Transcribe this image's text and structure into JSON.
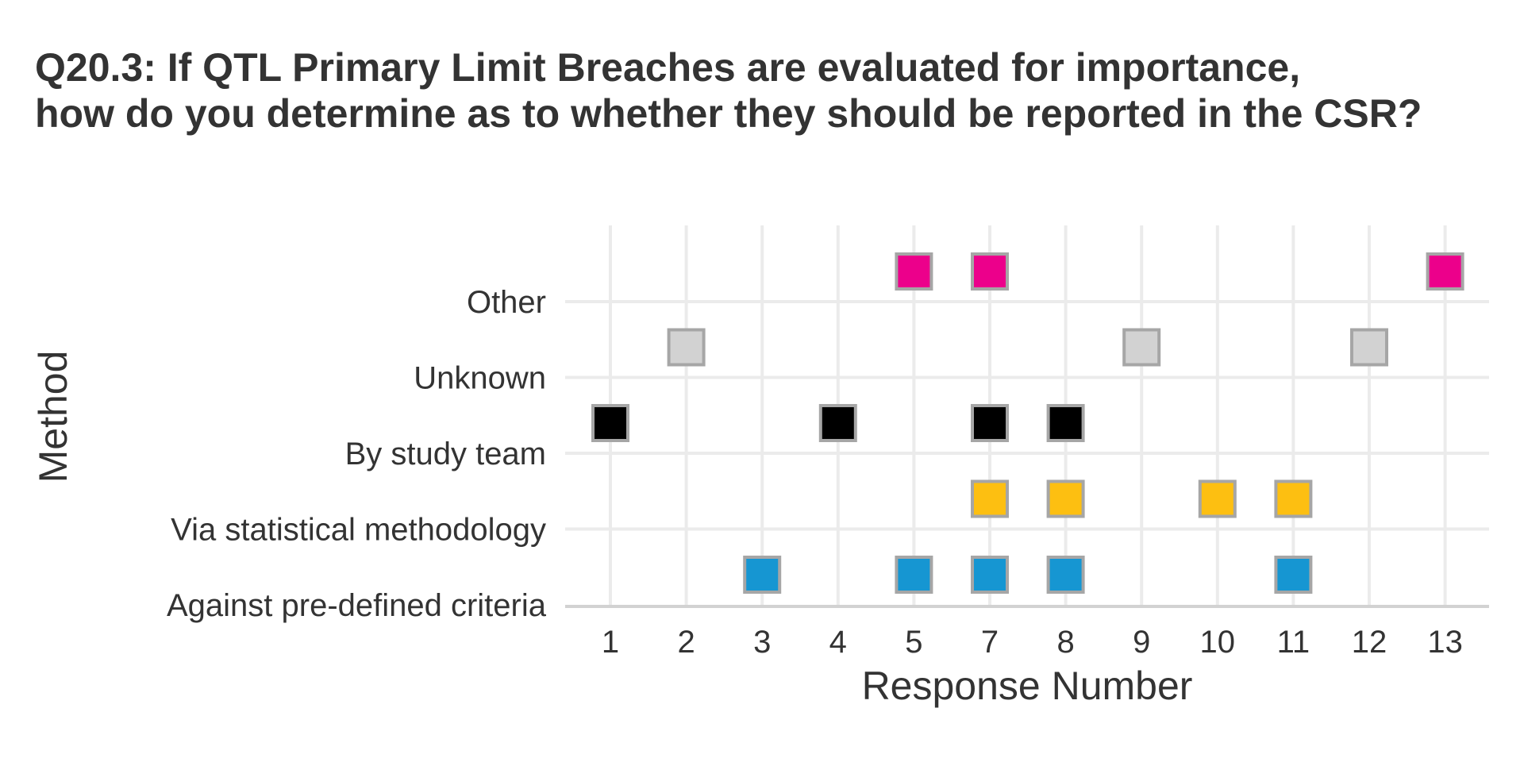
{
  "chart_data": {
    "type": "scatter",
    "title_lines": [
      "Q20.3: If QTL Primary Limit Breaches are evaluated for importance,",
      "how do you determine as to whether they should be reported in the CSR?"
    ],
    "xlabel": "Response Number",
    "ylabel": "Method",
    "x_categories": [
      "1",
      "2",
      "3",
      "4",
      "5",
      "7",
      "8",
      "9",
      "10",
      "11",
      "12",
      "13"
    ],
    "y_categories": [
      "Against pre-defined criteria",
      "Via statistical methodology",
      "By study team",
      "Unknown",
      "Other"
    ],
    "grid": true,
    "legend": "none",
    "marker": "square",
    "marker_edge_color": "#a6a6a6",
    "series": [
      {
        "category": "Against pre-defined criteria",
        "color": "#1696d2",
        "x": [
          "3",
          "5",
          "7",
          "8",
          "11"
        ]
      },
      {
        "category": "Via statistical methodology",
        "color": "#fdbf11",
        "x": [
          "7",
          "8",
          "10",
          "11"
        ]
      },
      {
        "category": "By study team",
        "color": "#000000",
        "x": [
          "1",
          "4",
          "7",
          "8"
        ]
      },
      {
        "category": "Unknown",
        "color": "#d2d2d2",
        "x": [
          "2",
          "9",
          "12"
        ]
      },
      {
        "category": "Other",
        "color": "#ec008b",
        "x": [
          "5",
          "7",
          "13"
        ]
      }
    ]
  }
}
